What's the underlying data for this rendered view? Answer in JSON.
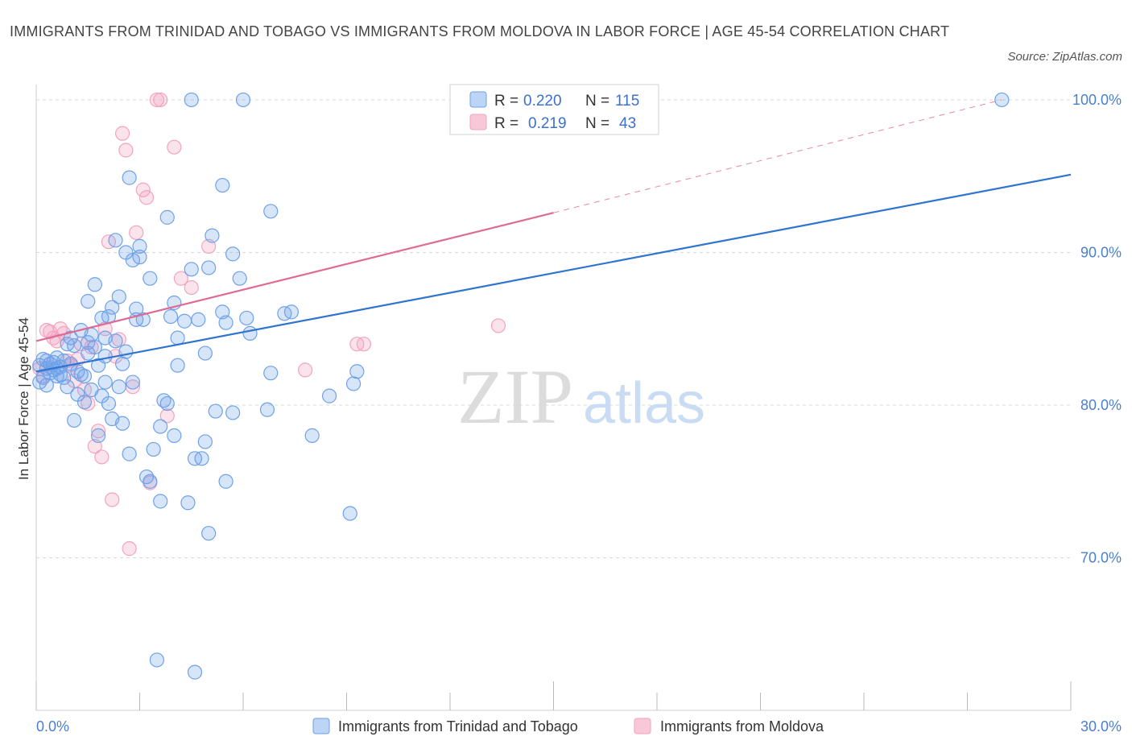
{
  "title": "IMMIGRANTS FROM TRINIDAD AND TOBAGO VS IMMIGRANTS FROM MOLDOVA IN LABOR FORCE | AGE 45-54 CORRELATION CHART",
  "source": "Source: ZipAtlas.com",
  "watermark": {
    "zip": "ZIP",
    "atlas": "atlas"
  },
  "colors": {
    "blue": "#6fa1e8",
    "blue_line": "#2f74d0",
    "pink": "#f2a3bf",
    "pink_line": "#e06a95",
    "grid": "#d8d8d8"
  },
  "chart_data": {
    "type": "scatter",
    "xlabel": "",
    "ylabel": "In Labor Force | Age 45-54",
    "xlim": [
      0,
      30
    ],
    "ylim": [
      60,
      101
    ],
    "x_tick_labels": [
      "0.0%",
      "30.0%"
    ],
    "y_ticks": [
      70,
      80,
      90,
      100
    ],
    "y_tick_labels": [
      "70.0%",
      "80.0%",
      "90.0%",
      "100.0%"
    ],
    "grid": true,
    "legend": {
      "placement": "top-center",
      "rows": [
        {
          "r_label": "R =",
          "r_value": "0.220",
          "n_label": "N =",
          "n_value": "115"
        },
        {
          "r_label": "R =",
          "r_value": "0.219",
          "n_label": "N =",
          "n_value": "43"
        }
      ]
    },
    "series": [
      {
        "name": "Immigrants from Trinidad and Tobago",
        "color": "#6fa1e8",
        "trend": {
          "x": [
            0,
            30
          ],
          "y": [
            82.2,
            95.1
          ],
          "dashed_extension": false
        },
        "points": [
          [
            0.1,
            81.5
          ],
          [
            0.1,
            82.6
          ],
          [
            0.2,
            81.8
          ],
          [
            0.2,
            83.0
          ],
          [
            0.3,
            82.4
          ],
          [
            0.3,
            82.9
          ],
          [
            0.3,
            81.3
          ],
          [
            0.4,
            82.1
          ],
          [
            0.4,
            82.7
          ],
          [
            0.5,
            82.3
          ],
          [
            0.5,
            82.8
          ],
          [
            0.6,
            81.9
          ],
          [
            0.6,
            83.1
          ],
          [
            0.7,
            82.5
          ],
          [
            0.7,
            82.0
          ],
          [
            0.8,
            82.9
          ],
          [
            0.8,
            81.8
          ],
          [
            0.9,
            84.0
          ],
          [
            0.9,
            81.2
          ],
          [
            1.0,
            82.7
          ],
          [
            1.0,
            84.4
          ],
          [
            1.1,
            83.9
          ],
          [
            1.1,
            79.0
          ],
          [
            1.2,
            80.7
          ],
          [
            1.2,
            82.2
          ],
          [
            1.3,
            82.0
          ],
          [
            1.3,
            84.9
          ],
          [
            1.4,
            80.2
          ],
          [
            1.4,
            81.9
          ],
          [
            1.5,
            86.8
          ],
          [
            1.5,
            83.4
          ],
          [
            1.6,
            84.6
          ],
          [
            1.6,
            81.0
          ],
          [
            1.7,
            87.9
          ],
          [
            1.7,
            83.8
          ],
          [
            1.8,
            82.6
          ],
          [
            1.8,
            78.0
          ],
          [
            1.9,
            85.7
          ],
          [
            1.9,
            80.6
          ],
          [
            2.0,
            84.4
          ],
          [
            2.0,
            81.5
          ],
          [
            2.1,
            85.8
          ],
          [
            2.1,
            80.1
          ],
          [
            2.2,
            79.1
          ],
          [
            2.2,
            86.4
          ],
          [
            2.3,
            90.8
          ],
          [
            2.3,
            84.2
          ],
          [
            2.4,
            87.1
          ],
          [
            2.4,
            81.2
          ],
          [
            2.5,
            78.8
          ],
          [
            2.5,
            82.7
          ],
          [
            2.6,
            90.0
          ],
          [
            2.6,
            83.5
          ],
          [
            2.7,
            94.9
          ],
          [
            2.7,
            76.8
          ],
          [
            2.8,
            89.5
          ],
          [
            2.8,
            81.5
          ],
          [
            2.9,
            85.6
          ],
          [
            2.9,
            86.3
          ],
          [
            3.0,
            89.7
          ],
          [
            3.0,
            90.4
          ],
          [
            3.1,
            85.6
          ],
          [
            3.2,
            75.3
          ],
          [
            3.3,
            75.0
          ],
          [
            3.3,
            88.3
          ],
          [
            3.4,
            77.1
          ],
          [
            3.5,
            63.3
          ],
          [
            3.6,
            78.6
          ],
          [
            3.6,
            73.7
          ],
          [
            3.7,
            80.3
          ],
          [
            3.8,
            92.3
          ],
          [
            3.8,
            80.1
          ],
          [
            3.9,
            85.8
          ],
          [
            4.0,
            78.0
          ],
          [
            4.0,
            86.7
          ],
          [
            4.1,
            82.6
          ],
          [
            4.1,
            84.4
          ],
          [
            4.3,
            85.5
          ],
          [
            4.4,
            73.6
          ],
          [
            4.5,
            88.9
          ],
          [
            4.5,
            100.0
          ],
          [
            4.6,
            76.5
          ],
          [
            4.6,
            62.5
          ],
          [
            4.7,
            85.6
          ],
          [
            4.8,
            76.5
          ],
          [
            4.9,
            77.6
          ],
          [
            4.9,
            83.4
          ],
          [
            5.0,
            89.0
          ],
          [
            5.0,
            71.6
          ],
          [
            5.1,
            91.1
          ],
          [
            5.2,
            79.6
          ],
          [
            5.4,
            86.1
          ],
          [
            5.4,
            94.4
          ],
          [
            5.5,
            75.0
          ],
          [
            5.5,
            85.4
          ],
          [
            5.7,
            79.5
          ],
          [
            5.7,
            89.9
          ],
          [
            5.9,
            88.3
          ],
          [
            6.0,
            100.0
          ],
          [
            6.1,
            85.7
          ],
          [
            6.2,
            84.7
          ],
          [
            6.7,
            79.7
          ],
          [
            6.8,
            82.1
          ],
          [
            6.8,
            92.7
          ],
          [
            7.2,
            86.0
          ],
          [
            7.4,
            86.1
          ],
          [
            8.0,
            78.0
          ],
          [
            8.5,
            80.6
          ],
          [
            9.1,
            72.9
          ],
          [
            9.2,
            81.4
          ],
          [
            9.3,
            82.2
          ],
          [
            28.0,
            100.0
          ],
          [
            1.5,
            84.1
          ],
          [
            2.0,
            83.2
          ],
          [
            0.6,
            82.4
          ]
        ]
      },
      {
        "name": "Immigrants from Moldova",
        "color": "#f2a3bf",
        "trend": {
          "x": [
            0,
            15
          ],
          "y": [
            84.2,
            92.6
          ],
          "dashed_extension": {
            "x": [
              15,
              28
            ],
            "y": [
              92.6,
              100.0
            ]
          }
        },
        "points": [
          [
            0.1,
            82.4
          ],
          [
            0.2,
            81.9
          ],
          [
            0.3,
            84.9
          ],
          [
            0.4,
            84.8
          ],
          [
            0.5,
            84.4
          ],
          [
            0.6,
            84.2
          ],
          [
            0.7,
            85.0
          ],
          [
            0.8,
            84.7
          ],
          [
            0.9,
            82.9
          ],
          [
            1.0,
            82.6
          ],
          [
            1.1,
            81.6
          ],
          [
            1.2,
            83.0
          ],
          [
            1.3,
            84.0
          ],
          [
            1.4,
            81.0
          ],
          [
            1.5,
            80.1
          ],
          [
            1.6,
            83.8
          ],
          [
            1.7,
            77.3
          ],
          [
            1.8,
            78.3
          ],
          [
            1.9,
            76.6
          ],
          [
            2.0,
            85.0
          ],
          [
            2.1,
            90.7
          ],
          [
            2.2,
            73.8
          ],
          [
            2.3,
            83.2
          ],
          [
            2.4,
            84.3
          ],
          [
            2.5,
            97.8
          ],
          [
            2.6,
            96.7
          ],
          [
            2.7,
            70.6
          ],
          [
            2.8,
            81.2
          ],
          [
            2.9,
            91.3
          ],
          [
            3.1,
            94.1
          ],
          [
            3.2,
            93.6
          ],
          [
            3.3,
            74.9
          ],
          [
            3.5,
            100.0
          ],
          [
            3.6,
            100.0
          ],
          [
            3.8,
            79.3
          ],
          [
            4.0,
            96.9
          ],
          [
            4.2,
            88.3
          ],
          [
            4.5,
            87.7
          ],
          [
            5.0,
            90.4
          ],
          [
            7.8,
            82.3
          ],
          [
            9.3,
            84.0
          ],
          [
            9.5,
            84.0
          ],
          [
            13.4,
            85.2
          ]
        ]
      }
    ]
  }
}
